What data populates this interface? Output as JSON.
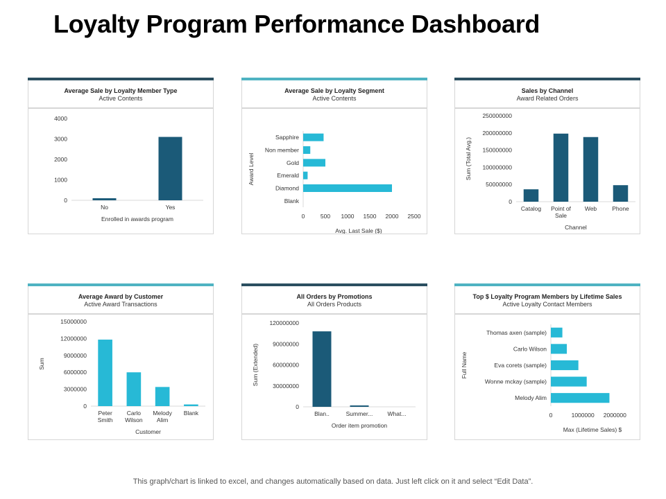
{
  "page": {
    "title": "Loyalty Program Performance Dashboard",
    "footer": "This graph/chart is linked to excel, and changes automatically based on data. Just left click on it and select “Edit Data”."
  },
  "colors": {
    "dark": "#1b5a78",
    "light": "#27b9d6",
    "bar_top_dark": "#2b4f60",
    "bar_top_light": "#4fb3c2"
  },
  "chart_data": [
    {
      "id": "member-type",
      "type": "bar",
      "orientation": "vertical",
      "title": "Average Sale by Loyalty Member Type",
      "subtitle": "Active Contents",
      "xlabel": "Enrolled in awards program",
      "ylabel": "",
      "categories": [
        "No",
        "Yes"
      ],
      "values": [
        100,
        3100
      ],
      "ylim": [
        0,
        4000
      ],
      "yticks": [
        0,
        1000,
        2000,
        3000,
        4000
      ],
      "ytick_labels": [
        "0",
        "1000",
        "2000",
        "3000",
        "4000"
      ],
      "color": "dark",
      "topbar": "bar_top_dark"
    },
    {
      "id": "loyalty-segment",
      "type": "bar",
      "orientation": "horizontal",
      "title": "Average Sale by Loyalty  Segment",
      "subtitle": "Active Contents",
      "xlabel": "Avg. Last Sale ($)",
      "ylabel": "Award Level",
      "categories": [
        "Sapphire",
        "Non member",
        "Gold",
        "Emerald",
        "Diamond",
        "Blank"
      ],
      "values": [
        460,
        160,
        500,
        100,
        2000,
        0
      ],
      "xlim": [
        0,
        2500
      ],
      "xticks": [
        0,
        500,
        1000,
        1500,
        2000,
        2500
      ],
      "xtick_labels": [
        "0",
        "500",
        "1000",
        "1500",
        "2000",
        "2500"
      ],
      "color": "light",
      "topbar": "bar_top_light"
    },
    {
      "id": "sales-channel",
      "type": "bar",
      "orientation": "vertical",
      "title": "Sales by Channel",
      "subtitle": "Award Related Orders",
      "xlabel": "Channel",
      "ylabel": "Sum (Total Avg.)",
      "categories": [
        "Catalog",
        "Point of|Sale",
        "Web",
        "Phone"
      ],
      "values": [
        36000000,
        198000000,
        188000000,
        48000000
      ],
      "ylim": [
        0,
        250000000
      ],
      "yticks": [
        0,
        50000000,
        100000000,
        150000000,
        200000000,
        250000000
      ],
      "ytick_labels": [
        "0",
        "50000000",
        "100000000",
        "150000000",
        "200000000",
        "250000000"
      ],
      "color": "dark",
      "topbar": "bar_top_dark"
    },
    {
      "id": "award-customer",
      "type": "bar",
      "orientation": "vertical",
      "title": "Average Award by Customer",
      "subtitle": "Active Award Transactions",
      "xlabel": "Customer",
      "ylabel": "Sum",
      "categories": [
        "Peter|Smith",
        "Carlo|Wilson",
        "Melody|Alim",
        "Blank"
      ],
      "values": [
        11800000,
        6000000,
        3400000,
        300000
      ],
      "ylim": [
        0,
        15000000
      ],
      "yticks": [
        0,
        3000000,
        6000000,
        9000000,
        12000000,
        15000000
      ],
      "ytick_labels": [
        "0",
        "3000000",
        "6000000",
        "9000000",
        "12000000",
        "15000000"
      ],
      "color": "light",
      "topbar": "bar_top_light"
    },
    {
      "id": "orders-promotions",
      "type": "bar",
      "orientation": "vertical",
      "title": "All Orders by Promotions",
      "subtitle": "All Orders Products",
      "xlabel": "Order item promotion",
      "ylabel": "Sum (Extended)",
      "categories": [
        "Blan..",
        "Summer...",
        "What..."
      ],
      "values": [
        108000000,
        1000000,
        0
      ],
      "ylim": [
        0,
        120000000
      ],
      "yticks": [
        0,
        30000000,
        60000000,
        90000000,
        120000000
      ],
      "ytick_labels": [
        "0",
        "30000000",
        "60000000",
        "90000000",
        "120000000"
      ],
      "color": "dark",
      "topbar": "bar_top_dark"
    },
    {
      "id": "top-members",
      "type": "bar",
      "orientation": "horizontal",
      "title": "Top $ Loyalty Program Members by Lifetime Sales",
      "subtitle": "Active Loyalty Contact Members",
      "xlabel": "Max (Lifetime Sales) $",
      "ylabel": "Full Name",
      "categories": [
        "Thomas axen (sample)",
        "Carlo Wilson",
        "Eva corets (sample)",
        "Wonne mckay (sample)",
        "Melody Alim"
      ],
      "values": [
        360000,
        500000,
        860000,
        1120000,
        1830000
      ],
      "xlim": [
        0,
        2600000
      ],
      "xticks": [
        0,
        1000000,
        2000000
      ],
      "xtick_labels": [
        "0",
        "1000000",
        "2000000"
      ],
      "color": "light",
      "topbar": "bar_top_light"
    }
  ]
}
